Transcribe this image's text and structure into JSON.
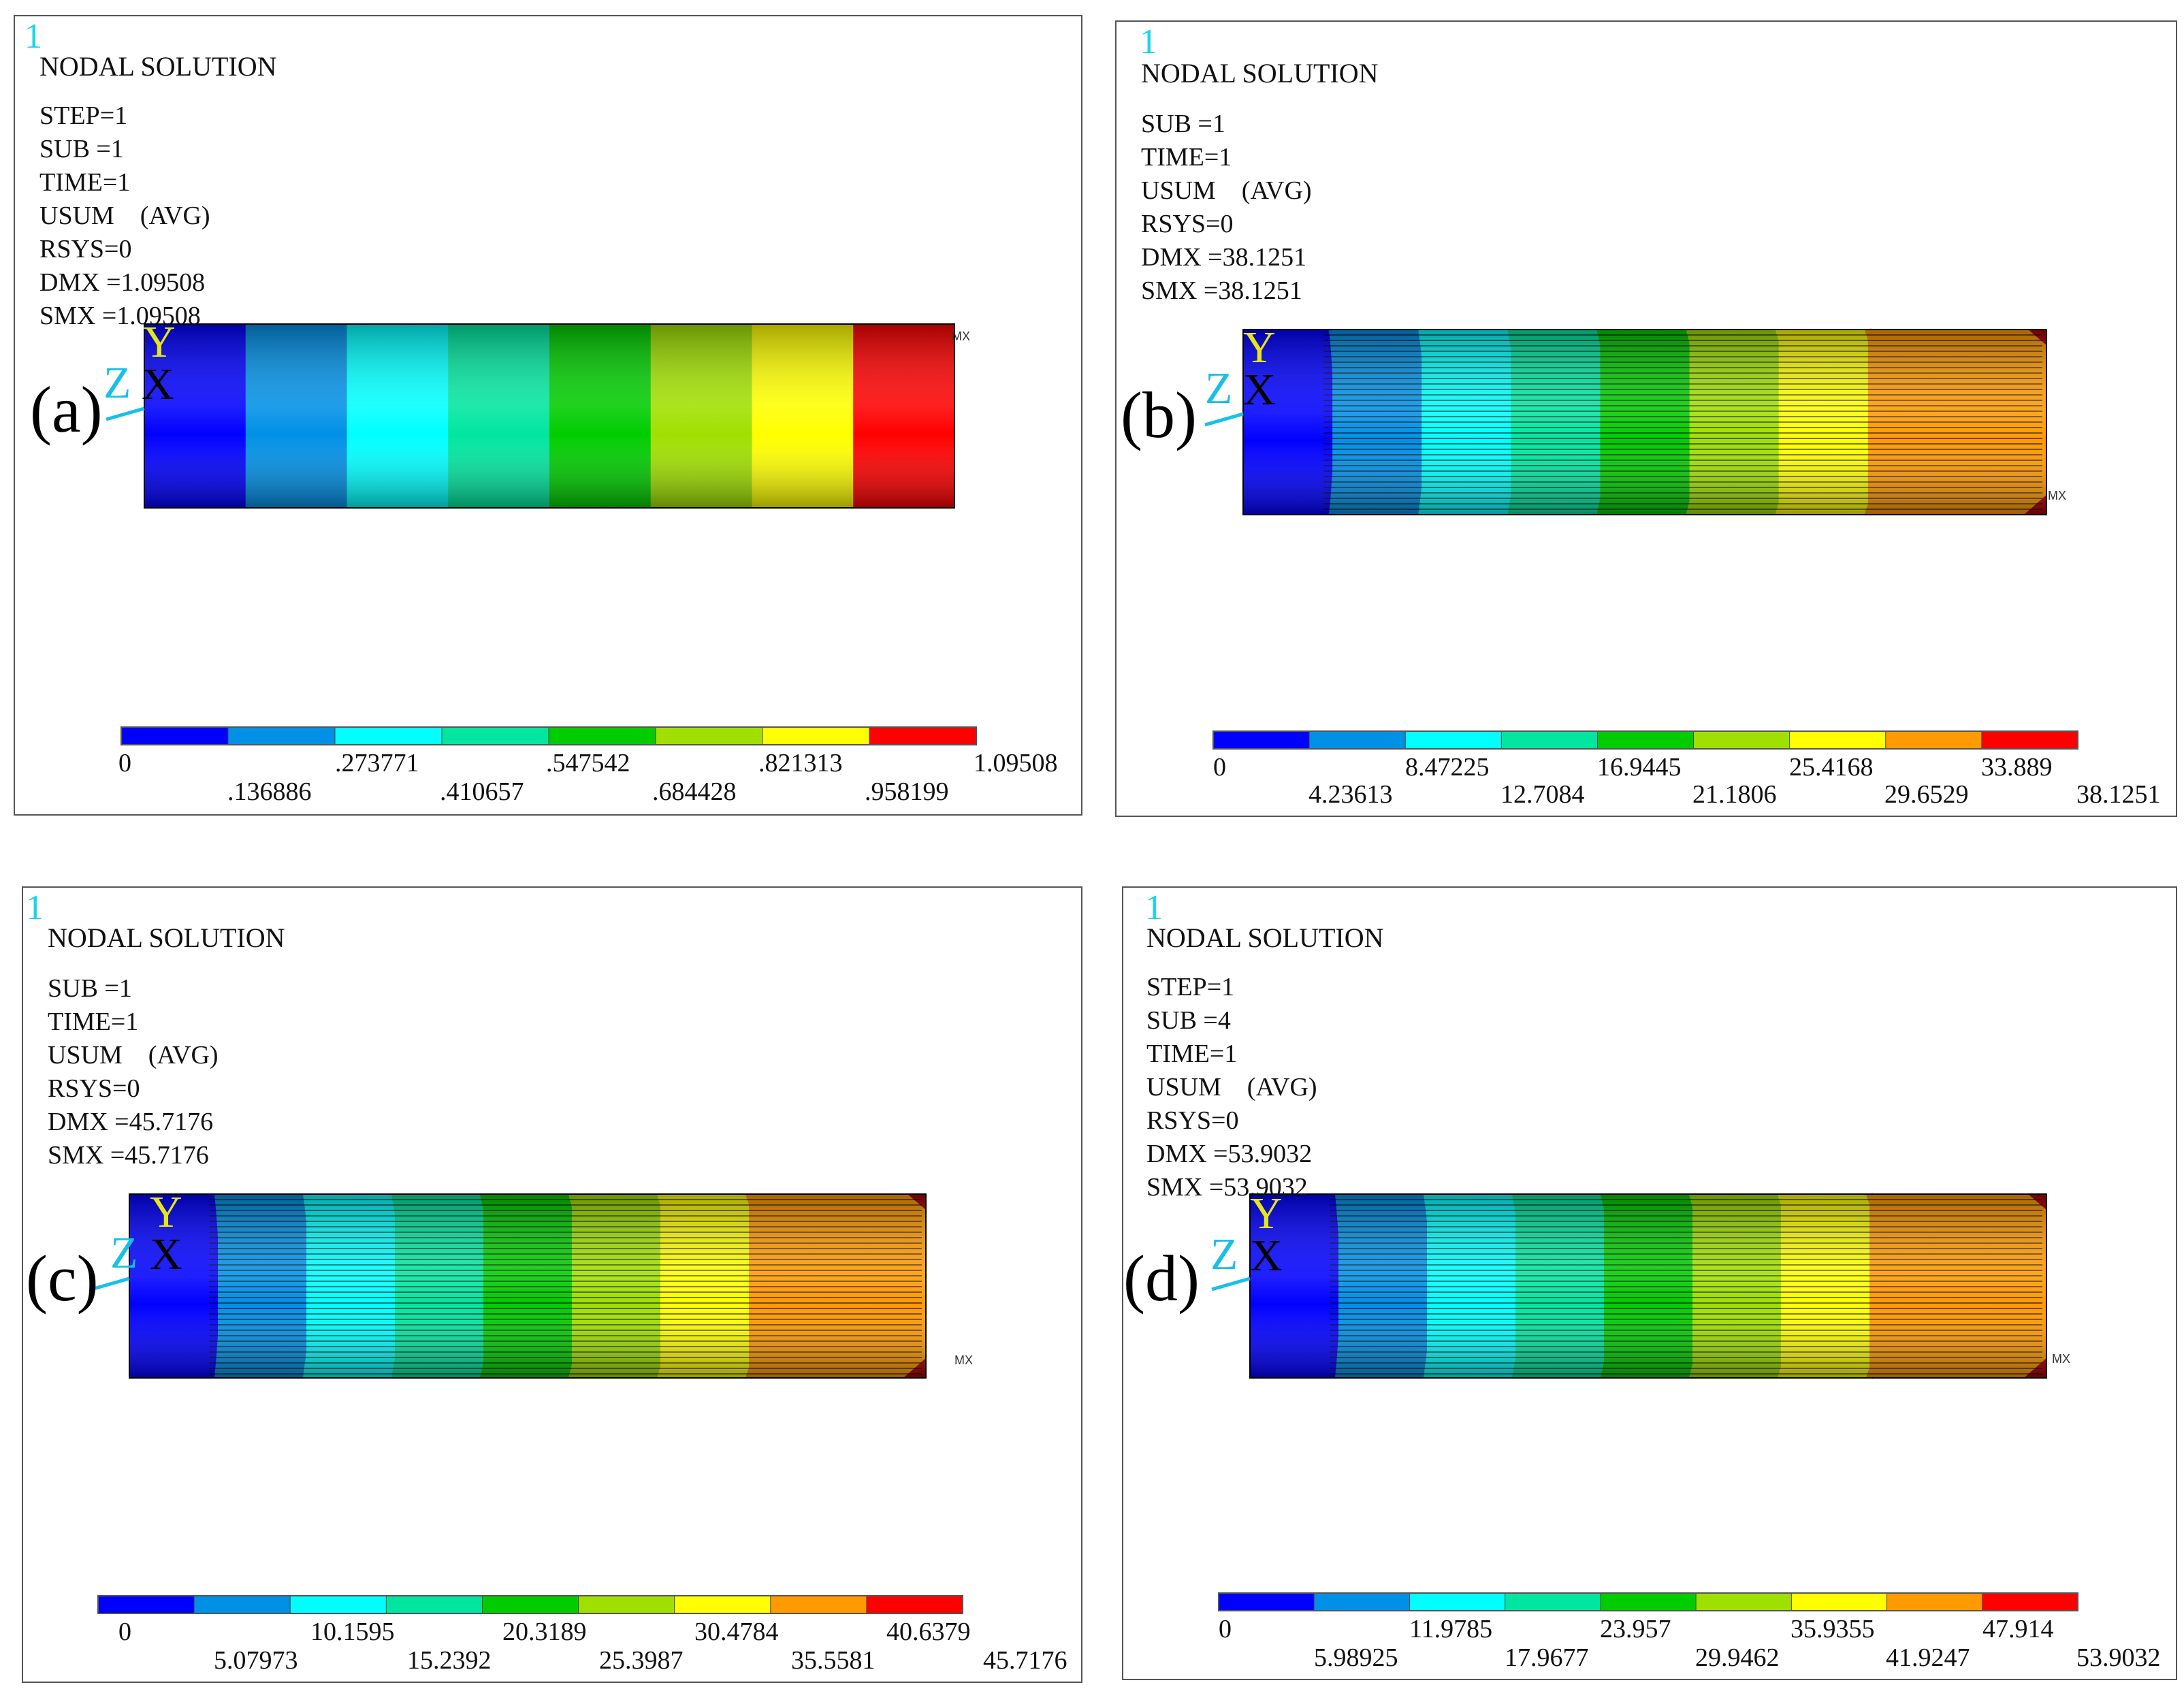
{
  "colors": [
    "#0000ff",
    "#0090e6",
    "#00ffff",
    "#00e6a0",
    "#00cc00",
    "#a0e000",
    "#ffff00",
    "#ff9a00",
    "#ff0000"
  ],
  "panels": [
    {
      "fig_num": "1",
      "title": "NODAL SOLUTION",
      "lines": [
        "STEP=1",
        "SUB =1",
        "TIME=1",
        "USUM    (AVG)",
        "RSYS=0",
        "DMX =1.09508",
        "SMX =1.09508"
      ],
      "tag": "(a)",
      "axis_y": "Y",
      "axis_z": "Z",
      "axis_x": "X",
      "mx": "MX",
      "levels": 8,
      "ticks_top": [
        "0",
        ".273771",
        ".547542",
        ".821313",
        "1.09508"
      ],
      "ticks_bottom": [
        ".136886",
        ".410657",
        ".684428",
        ".958199"
      ]
    },
    {
      "fig_num": "1",
      "title": "NODAL SOLUTION",
      "lines": [
        "SUB =1",
        "TIME=1",
        "USUM    (AVG)",
        "RSYS=0",
        "DMX =38.1251",
        "SMX =38.1251"
      ],
      "tag": "(b)",
      "axis_y": "Y",
      "axis_z": "Z",
      "axis_x": "X",
      "mx": "MX",
      "levels": 9,
      "ticks_top": [
        "0",
        "8.47225",
        "16.9445",
        "25.4168",
        "33.889"
      ],
      "ticks_bottom": [
        "4.23613",
        "12.7084",
        "21.1806",
        "29.6529",
        "38.1251"
      ]
    },
    {
      "fig_num": "1",
      "title": "NODAL SOLUTION",
      "lines": [
        "SUB =1",
        "TIME=1",
        "USUM    (AVG)",
        "RSYS=0",
        "DMX =45.7176",
        "SMX =45.7176"
      ],
      "tag": "(c)",
      "axis_y": "Y",
      "axis_z": "Z",
      "axis_x": "X",
      "mx": "MX",
      "levels": 9,
      "ticks_top": [
        "0",
        "10.1595",
        "20.3189",
        "30.4784",
        "40.6379"
      ],
      "ticks_bottom": [
        "5.07973",
        "15.2392",
        "25.3987",
        "35.5581",
        "45.7176"
      ]
    },
    {
      "fig_num": "1",
      "title": "NODAL SOLUTION",
      "lines": [
        "STEP=1",
        "SUB =4",
        "TIME=1",
        "USUM    (AVG)",
        "RSYS=0",
        "DMX =53.9032",
        "SMX =53.9032"
      ],
      "tag": "(d)",
      "axis_y": "Y",
      "axis_z": "Z",
      "axis_x": "X",
      "mx": "MX",
      "levels": 9,
      "ticks_top": [
        "0",
        "11.9785",
        "23.957",
        "35.9355",
        "47.914"
      ],
      "ticks_bottom": [
        "5.98925",
        "17.9677",
        "29.9462",
        "41.9247",
        "53.9032"
      ]
    }
  ]
}
